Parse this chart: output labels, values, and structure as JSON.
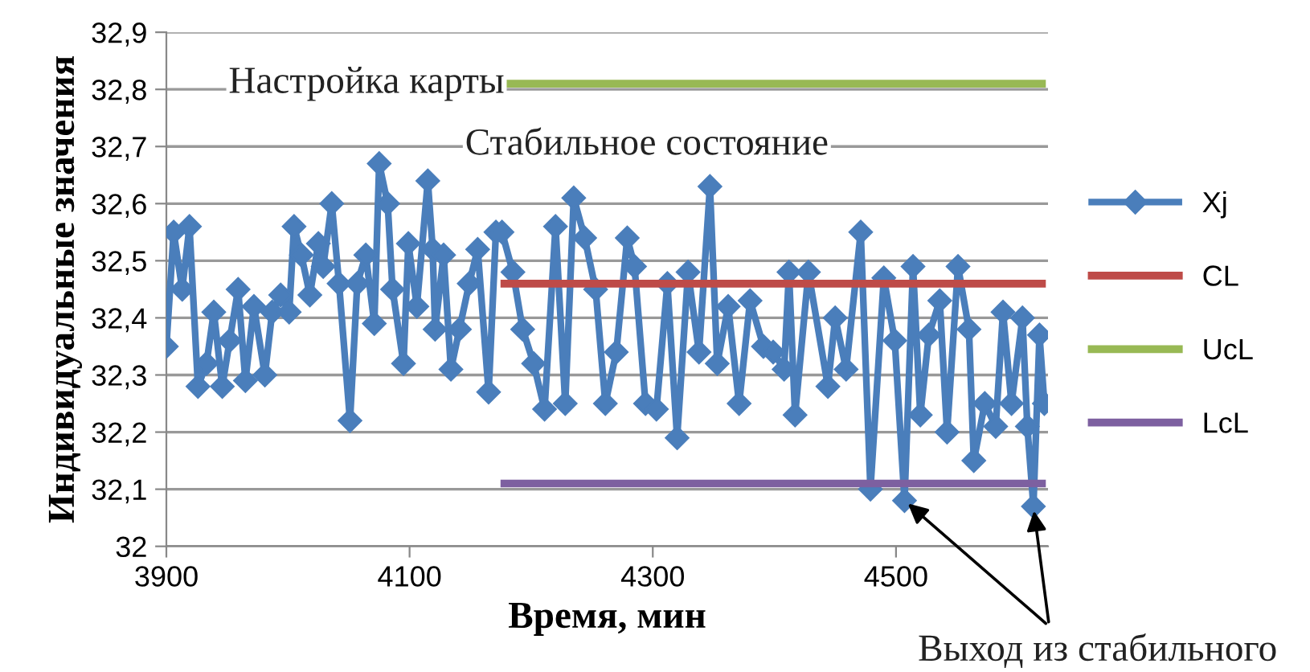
{
  "chart_data": {
    "type": "line",
    "xlabel": "Время, мин",
    "ylabel": "Индивидуальные значения",
    "xlim": [
      3900,
      4625
    ],
    "xticks": [
      3900,
      4100,
      4300,
      4500
    ],
    "ylim": [
      32,
      32.9
    ],
    "yticks": [
      {
        "value": 32,
        "label": "32"
      },
      {
        "value": 32.1,
        "label": "32,1"
      },
      {
        "value": 32.2,
        "label": "32,2"
      },
      {
        "value": 32.3,
        "label": "32,3"
      },
      {
        "value": 32.4,
        "label": "32,4"
      },
      {
        "value": 32.5,
        "label": "32,5"
      },
      {
        "value": 32.6,
        "label": "32,6"
      },
      {
        "value": 32.7,
        "label": "32,7"
      },
      {
        "value": 32.8,
        "label": "32,8"
      },
      {
        "value": 32.9,
        "label": "32,9"
      }
    ],
    "grid": "y",
    "legend": "right",
    "marker": "diamond",
    "line_style": "solid",
    "series": [
      {
        "name": "Xj",
        "color": "#4a7ebb",
        "x": [
          3900,
          3906,
          3913,
          3919,
          3926,
          3933,
          3939,
          3946,
          3952,
          3959,
          3965,
          3972,
          3981,
          3987,
          3994,
          4001,
          4005,
          4011,
          4018,
          4025,
          4029,
          4036,
          4042,
          4051,
          4057,
          4064,
          4071,
          4075,
          4082,
          4086,
          4095,
          4099,
          4106,
          4115,
          4119,
          4121,
          4128,
          4134,
          4141,
          4149,
          4156,
          4165,
          4171,
          4176,
          4185,
          4193,
          4202,
          4211,
          4220,
          4228,
          4235,
          4244,
          4253,
          4261,
          4270,
          4279,
          4285,
          4294,
          4303,
          4312,
          4320,
          4329,
          4338,
          4347,
          4353,
          4362,
          4371,
          4380,
          4391,
          4399,
          4408,
          4412,
          4417,
          4428,
          4444,
          4450,
          4459,
          4471,
          4479,
          4490,
          4499,
          4507,
          4514,
          4520,
          4527,
          4536,
          4542,
          4551,
          4560,
          4564,
          4573,
          4582,
          4588,
          4595,
          4604,
          4608,
          4613,
          4618,
          4622
        ],
        "values": [
          32.35,
          32.55,
          32.45,
          32.56,
          32.28,
          32.32,
          32.41,
          32.28,
          32.36,
          32.45,
          32.29,
          32.42,
          32.3,
          32.41,
          32.44,
          32.41,
          32.56,
          32.51,
          32.44,
          32.53,
          32.49,
          32.6,
          32.46,
          32.22,
          32.46,
          32.51,
          32.39,
          32.67,
          32.6,
          32.45,
          32.32,
          32.53,
          32.42,
          32.64,
          32.52,
          32.38,
          32.51,
          32.31,
          32.38,
          32.46,
          32.52,
          32.27,
          32.55,
          32.55,
          32.48,
          32.38,
          32.32,
          32.24,
          32.56,
          32.25,
          32.61,
          32.54,
          32.45,
          32.25,
          32.34,
          32.54,
          32.49,
          32.25,
          32.24,
          32.46,
          32.19,
          32.48,
          32.34,
          32.63,
          32.32,
          32.42,
          32.25,
          32.43,
          32.35,
          32.34,
          32.31,
          32.48,
          32.23,
          32.48,
          32.28,
          32.4,
          32.31,
          32.55,
          32.1,
          32.47,
          32.36,
          32.08,
          32.49,
          32.23,
          32.37,
          32.43,
          32.2,
          32.49,
          32.38,
          32.15,
          32.25,
          32.21,
          32.41,
          32.25,
          32.4,
          32.21,
          32.07,
          32.37,
          32.25
        ]
      },
      {
        "name": "CL",
        "color": "#be4b48",
        "marker": "none",
        "x": [
          4178,
          4620
        ],
        "values": [
          32.46,
          32.46
        ]
      },
      {
        "name": "UcL",
        "color": "#98b954",
        "marker": "none",
        "x": [
          4178,
          4620
        ],
        "values": [
          32.81,
          32.81
        ]
      },
      {
        "name": "LcL",
        "color": "#7d60a0",
        "marker": "none",
        "x": [
          4178,
          4620
        ],
        "values": [
          32.11,
          32.11
        ]
      }
    ],
    "annotations": [
      {
        "text": "Настройка карты",
        "x": 4178,
        "y": 32.81
      },
      "Стабильное состояние",
      {
        "text": "Выход из стабильного",
        "x": 4507,
        "y": 32.08
      }
    ]
  }
}
